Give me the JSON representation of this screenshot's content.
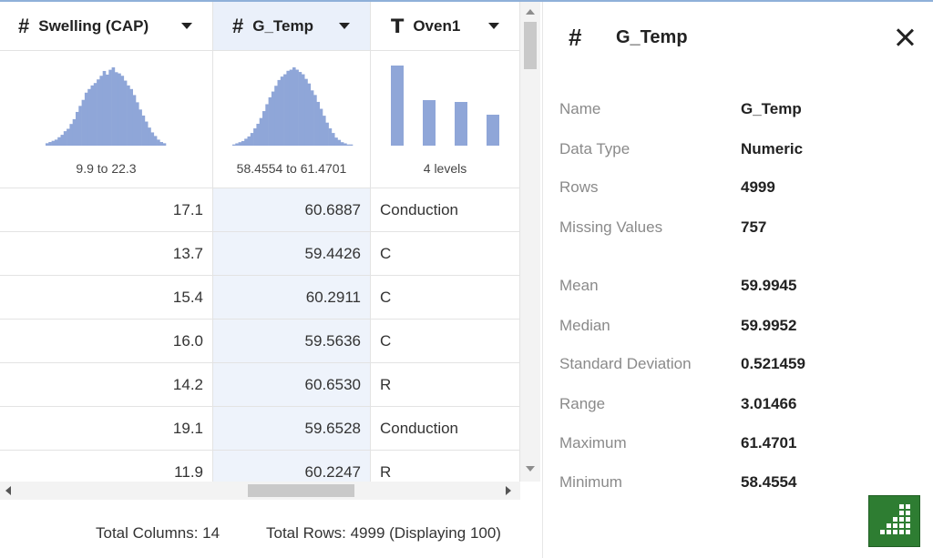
{
  "columns": [
    {
      "type_icon": "#",
      "name": "Swelling (CAP)",
      "range": "9.9 to 22.3",
      "hist": [
        2,
        3,
        4,
        5,
        7,
        9,
        12,
        14,
        18,
        22,
        28,
        33,
        38,
        44,
        47,
        50,
        52,
        55,
        58,
        62,
        59,
        63,
        65,
        61,
        60,
        58,
        54,
        50,
        47,
        42,
        36,
        30,
        25,
        20,
        15,
        11,
        8,
        5,
        3,
        2
      ]
    },
    {
      "type_icon": "#",
      "name": "G_Temp",
      "range": "58.4554 to 61.4701",
      "hist": [
        1,
        2,
        3,
        4,
        6,
        8,
        11,
        15,
        19,
        24,
        30,
        36,
        42,
        47,
        52,
        57,
        60,
        62,
        65,
        66,
        68,
        66,
        64,
        62,
        58,
        54,
        48,
        44,
        38,
        32,
        26,
        20,
        15,
        11,
        7,
        5,
        3,
        2,
        1,
        1
      ]
    },
    {
      "type_icon": "T",
      "name": "Oven1",
      "range": "4 levels",
      "levels": [
        88,
        50,
        48,
        34
      ]
    }
  ],
  "rows": [
    {
      "swelling": "17.1",
      "g_temp": "60.6887",
      "oven1": "Conduction"
    },
    {
      "swelling": "13.7",
      "g_temp": "59.4426",
      "oven1": "C"
    },
    {
      "swelling": "15.4",
      "g_temp": "60.2911",
      "oven1": "C"
    },
    {
      "swelling": "16.0",
      "g_temp": "59.5636",
      "oven1": "C"
    },
    {
      "swelling": "14.2",
      "g_temp": "60.6530",
      "oven1": "R"
    },
    {
      "swelling": "19.1",
      "g_temp": "59.6528",
      "oven1": "Conduction"
    },
    {
      "swelling": "11.9",
      "g_temp": "60.2247",
      "oven1": "R"
    }
  ],
  "footer": {
    "total_columns": "Total Columns: 14",
    "total_rows": "Total Rows: 4999 (Displaying 100)"
  },
  "panel": {
    "icon": "#",
    "title": "G_Temp",
    "stats": [
      {
        "label": "Name",
        "value": "G_Temp"
      },
      {
        "label": "Data Type",
        "value": "Numeric"
      },
      {
        "label": "Rows",
        "value": "4999"
      },
      {
        "label": "Missing Values",
        "value": "757"
      },
      {
        "label": "Mean",
        "value": "59.9945"
      },
      {
        "label": "Median",
        "value": "59.9952"
      },
      {
        "label": "Standard Deviation",
        "value": "0.521459"
      },
      {
        "label": "Range",
        "value": "3.01466"
      },
      {
        "label": "Maximum",
        "value": "61.4701"
      },
      {
        "label": "Minimum",
        "value": "58.4554"
      }
    ]
  },
  "colors": {
    "accent_highlight": "#eaf0fa",
    "histogram": "#8fa6d8",
    "brand_green": "#2e7d32"
  }
}
